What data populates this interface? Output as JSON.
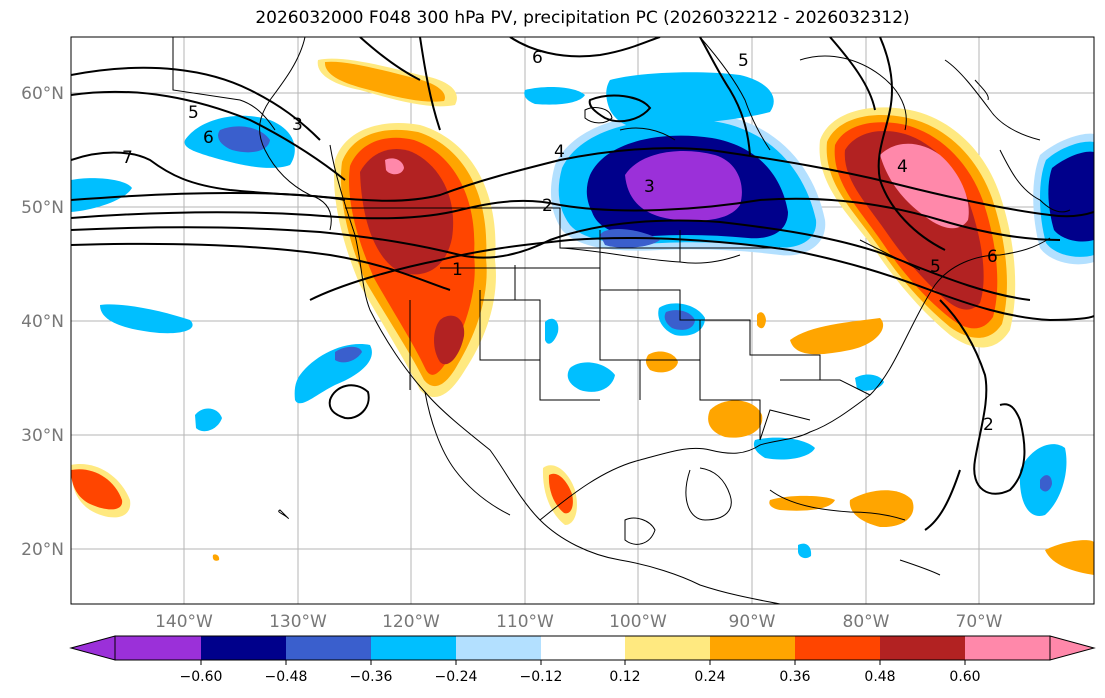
{
  "title": "2026032000 F048 300 hPa PV, precipitation PC (2026032212 - 2026032312)",
  "map": {
    "lat_labels": [
      "60°N",
      "50°N",
      "40°N",
      "30°N",
      "20°N"
    ],
    "lon_labels": [
      "140°W",
      "130°W",
      "120°W",
      "110°W",
      "100°W",
      "90°W",
      "80°W",
      "70°W"
    ],
    "contour_labels": [
      "6",
      "5",
      "3",
      "6",
      "7",
      "5",
      "4",
      "3",
      "2",
      "1",
      "6",
      "5",
      "4",
      "2"
    ]
  },
  "colorbar": {
    "labels": [
      "−0.60",
      "−0.48",
      "−0.36",
      "−0.24",
      "−0.12",
      "0.12",
      "0.24",
      "0.36",
      "0.48",
      "0.60"
    ],
    "colors": [
      "#9b30d9",
      "#00008b",
      "#3a5fcd",
      "#00bfff",
      "#b3e0ff",
      "#ffffff",
      "#ffe980",
      "#ffa500",
      "#ff4500",
      "#b22222",
      "#ff88aa"
    ]
  }
}
